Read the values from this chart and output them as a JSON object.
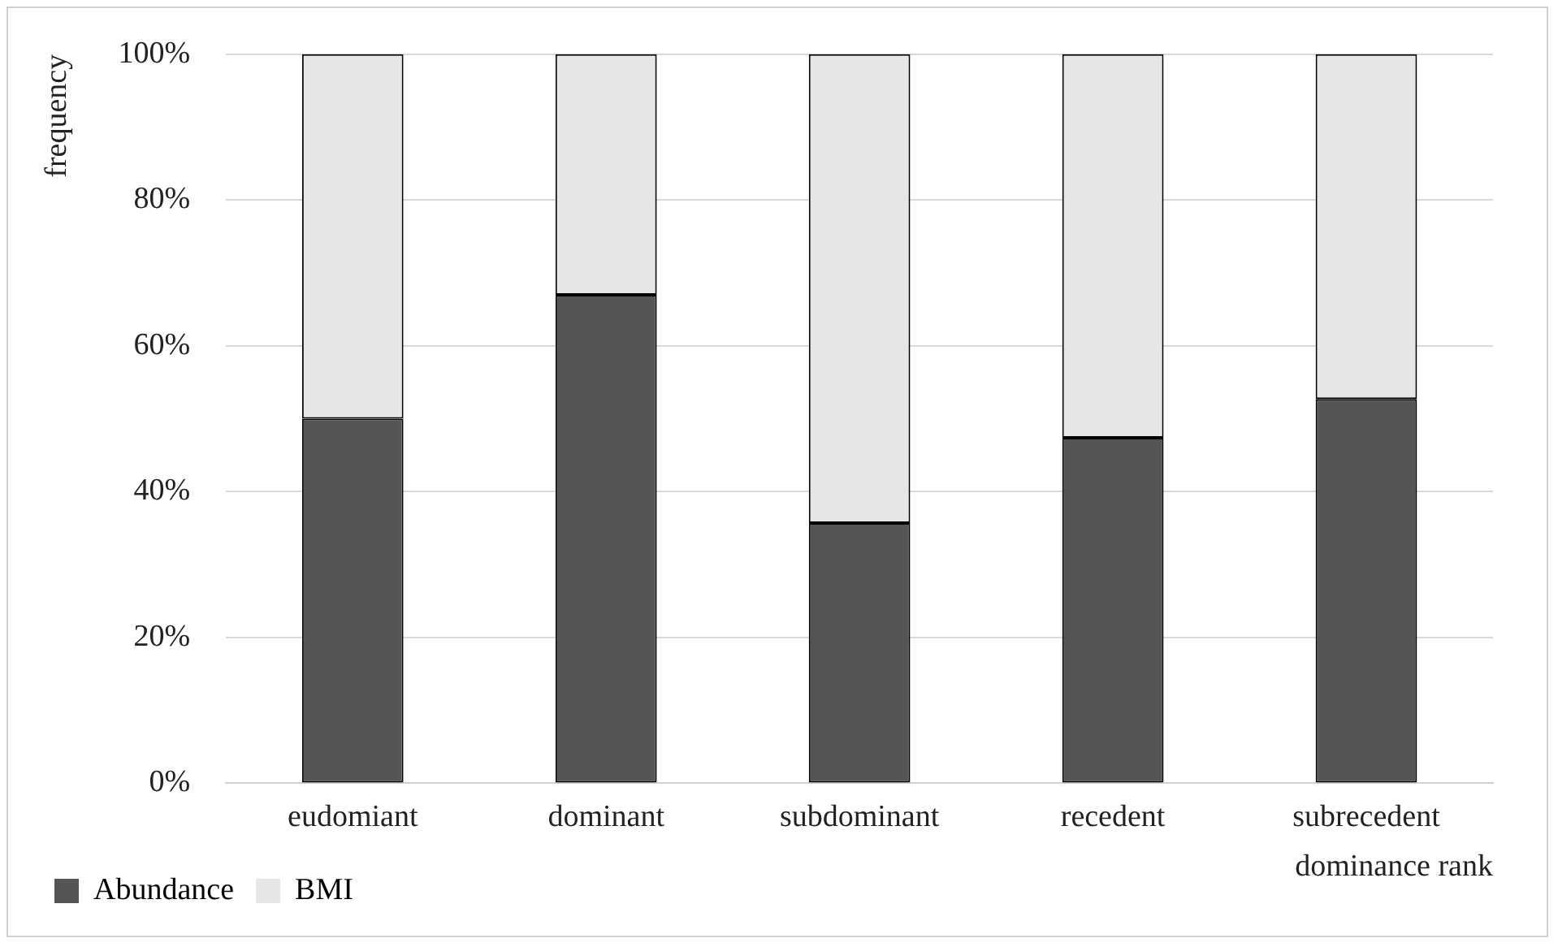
{
  "chart_data": {
    "type": "bar",
    "stacked": true,
    "xlabel": "dominance rank",
    "ylabel": "frequency",
    "categories": [
      "eudomiant",
      "dominant",
      "subdominant",
      "recedent",
      "subrecedent"
    ],
    "series": [
      {
        "name": "Abundance",
        "color": "#555555",
        "values": [
          50,
          67,
          35.7,
          47.4,
          52.7
        ]
      },
      {
        "name": "BMI",
        "color": "#e6e6e6",
        "values": [
          50,
          33,
          64.3,
          52.6,
          47.3
        ]
      }
    ],
    "ylim": [
      0,
      100
    ],
    "yticks": [
      {
        "value": 0,
        "label": "0%"
      },
      {
        "value": 20,
        "label": "20%"
      },
      {
        "value": 40,
        "label": "40%"
      },
      {
        "value": 60,
        "label": "60%"
      },
      {
        "value": 80,
        "label": "80%"
      },
      {
        "value": 100,
        "label": "100%"
      }
    ],
    "grid": "y",
    "legend": "bottom left"
  }
}
